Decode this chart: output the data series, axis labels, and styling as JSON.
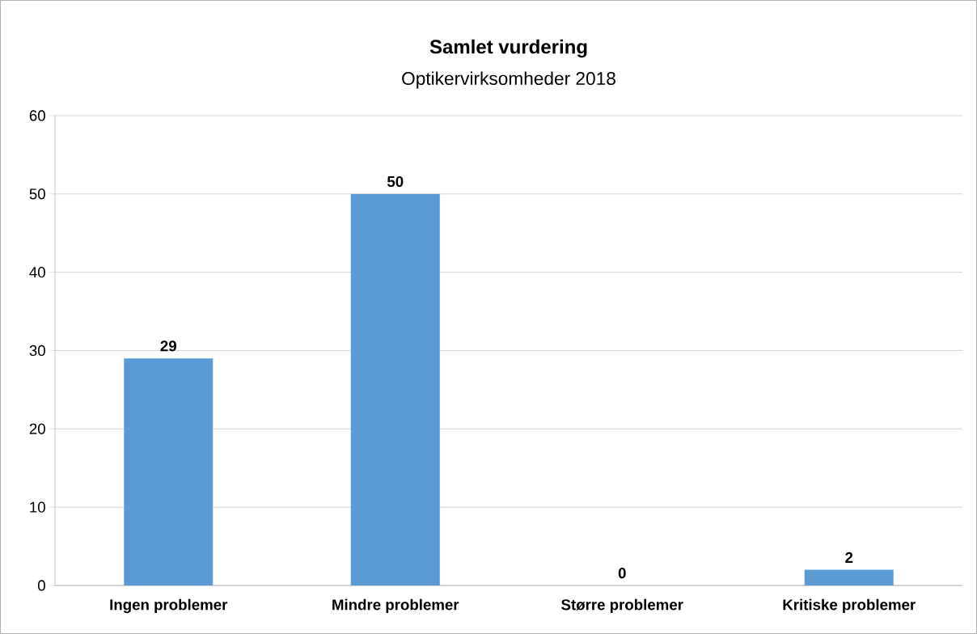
{
  "chart_data": {
    "type": "bar",
    "title": "Samlet vurdering",
    "subtitle": "Optikervirksomheder 2018",
    "categories": [
      "Ingen problemer",
      "Mindre problemer",
      "Større problemer",
      "Kritiske problemer"
    ],
    "values": [
      29,
      50,
      0,
      2
    ],
    "color": "#5b9bd5",
    "ylim": [
      0,
      60
    ],
    "yticks": [
      0,
      10,
      20,
      30,
      40,
      50,
      60
    ],
    "grid": "y",
    "data_labels": true
  }
}
